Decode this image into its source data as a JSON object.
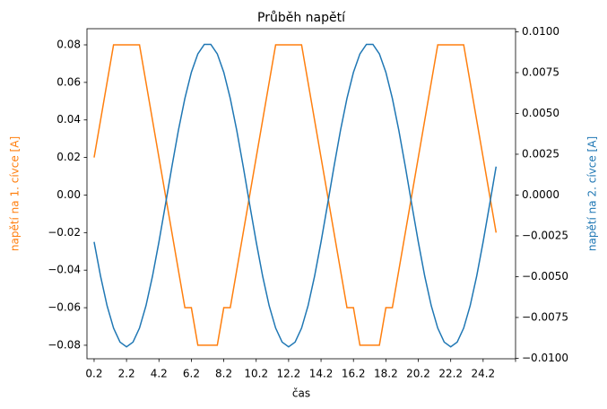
{
  "chart_data": {
    "type": "line",
    "title": "Průběh napětí",
    "x_label": "čas",
    "y_label": "napětí na 1. cívce [A]",
    "y2_label": "napětí na 2. cívce [A]",
    "x": [
      0.2,
      0.6,
      1.0,
      1.4,
      1.8,
      2.2,
      2.6,
      3.0,
      3.4,
      3.8,
      4.2,
      4.6,
      5.0,
      5.4,
      5.8,
      6.2,
      6.6,
      7.0,
      7.4,
      7.8,
      8.2,
      8.6,
      9.0,
      9.4,
      9.8,
      10.2,
      10.6,
      11.0,
      11.4,
      11.8,
      12.2,
      12.6,
      13.0,
      13.4,
      13.8,
      14.2,
      14.6,
      15.0,
      15.4,
      15.8,
      16.2,
      16.6,
      17.0,
      17.4,
      17.8,
      18.2,
      18.6,
      19.0,
      19.4,
      19.8,
      20.2,
      20.6,
      21.0,
      21.4,
      21.8,
      22.2,
      22.6,
      23.0,
      23.4,
      23.8,
      24.2,
      24.6,
      25.0
    ],
    "series": [
      {
        "name": "napětí na 1. cívce [A]",
        "color": "#ff7f0e",
        "axis": "y",
        "values": [
          0.02,
          0.04,
          0.06,
          0.08,
          0.08,
          0.08,
          0.08,
          0.08,
          0.06,
          0.04,
          0.02,
          0,
          -0.02,
          -0.04,
          -0.06,
          -0.06,
          -0.08,
          -0.08,
          -0.08,
          -0.08,
          -0.06,
          -0.06,
          -0.04,
          -0.02,
          0,
          0.02,
          0.04,
          0.06,
          0.08,
          0.08,
          0.08,
          0.08,
          0.08,
          0.06,
          0.04,
          0.02,
          0,
          -0.02,
          -0.04,
          -0.06,
          -0.06,
          -0.08,
          -0.08,
          -0.08,
          -0.08,
          -0.06,
          -0.06,
          -0.04,
          -0.02,
          0,
          0.02,
          0.04,
          0.06,
          0.08,
          0.08,
          0.08,
          0.08,
          0.08,
          0.06,
          0.04,
          0.02,
          0,
          -0.02
        ]
      },
      {
        "name": "napětí na 2. cívce [A]",
        "color": "#1f77b4",
        "axis": "y2",
        "values": [
          -0.00287,
          -0.00498,
          -0.00678,
          -0.00815,
          -0.00901,
          -0.0093,
          -0.00901,
          -0.00815,
          -0.00678,
          -0.00498,
          -0.00287,
          -0.00059,
          0.00174,
          0.00396,
          0.00592,
          0.00752,
          0.00865,
          0.00923,
          0.00923,
          0.00865,
          0.00752,
          0.00592,
          0.00396,
          0.00174,
          -0.00059,
          -0.00287,
          -0.00498,
          -0.00678,
          -0.00815,
          -0.00901,
          -0.0093,
          -0.00901,
          -0.00815,
          -0.00678,
          -0.00498,
          -0.00287,
          -0.00059,
          0.00174,
          0.00396,
          0.00592,
          0.00752,
          0.00865,
          0.00923,
          0.00923,
          0.00865,
          0.00752,
          0.00592,
          0.00396,
          0.00174,
          -0.00059,
          -0.00287,
          -0.00498,
          -0.00678,
          -0.00815,
          -0.00901,
          -0.0093,
          -0.00901,
          -0.00815,
          -0.00678,
          -0.00498,
          -0.00287,
          -0.00059,
          0.00174
        ]
      }
    ],
    "xlim": [
      -0.24,
      26.2
    ],
    "xticks": [
      0.2,
      2.2,
      4.2,
      6.2,
      8.2,
      10.2,
      12.2,
      14.2,
      16.2,
      18.2,
      20.2,
      22.2,
      24.2,
      {
        "value": 26.2,
        "label": null
      }
    ],
    "ylim": [
      -0.0872,
      0.0886
    ],
    "yticks": [
      {
        "value": -0.08,
        "label": "−0.08"
      },
      {
        "value": -0.06,
        "label": "−0.06"
      },
      {
        "value": -0.04,
        "label": "−0.04"
      },
      {
        "value": -0.02,
        "label": "−0.02"
      },
      {
        "value": 0,
        "label": "0.00"
      },
      0.02,
      0.04,
      0.06,
      0.08
    ],
    "y2lim": [
      -0.01003,
      0.01019
    ],
    "y2ticks": [
      {
        "value": -0.01,
        "label": "−0.0100"
      },
      {
        "value": -0.0075,
        "label": "−0.0075"
      },
      {
        "value": -0.005,
        "label": "−0.0050"
      },
      {
        "value": -0.0025,
        "label": "−0.0025"
      },
      {
        "value": 0,
        "label": "0.0000"
      },
      0.0025,
      {
        "value": 0.005,
        "label": "0.0050"
      },
      0.0075,
      {
        "value": 0.01,
        "label": "0.0100"
      }
    ]
  }
}
